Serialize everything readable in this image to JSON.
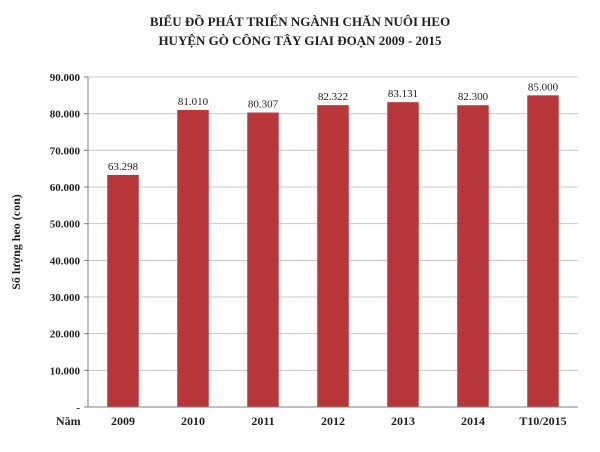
{
  "chart_data": {
    "type": "bar",
    "title": "BIỂU ĐỒ PHÁT TRIỂN NGÀNH CHĂN NUÔI HEO",
    "subtitle": "HUYỆN GÒ CÔNG TÂY GIAI ĐOẠN 2009 - 2015",
    "xlabel": "Năm",
    "ylabel": "Số lượng heo (con)",
    "categories": [
      "2009",
      "2010",
      "2011",
      "2012",
      "2013",
      "2014",
      "T10/2015"
    ],
    "values": [
      63298,
      81010,
      80307,
      82322,
      83131,
      82300,
      85000
    ],
    "data_labels": [
      "63.298",
      "81.010",
      "80.307",
      "82.322",
      "83.131",
      "82.300",
      "85.000"
    ],
    "ylim": [
      0,
      90000
    ],
    "yticks": [
      {
        "value": 0,
        "label": "-"
      },
      {
        "value": 10000,
        "label": "10.000"
      },
      {
        "value": 20000,
        "label": "20.000"
      },
      {
        "value": 30000,
        "label": "30.000"
      },
      {
        "value": 40000,
        "label": "40.000"
      },
      {
        "value": 50000,
        "label": "50.000"
      },
      {
        "value": 60000,
        "label": "60.000"
      },
      {
        "value": 70000,
        "label": "70.000"
      },
      {
        "value": 80000,
        "label": "80.000"
      },
      {
        "value": 90000,
        "label": "90.000"
      }
    ],
    "bar_color": "#b8373a",
    "grid": true,
    "legend": "none"
  }
}
